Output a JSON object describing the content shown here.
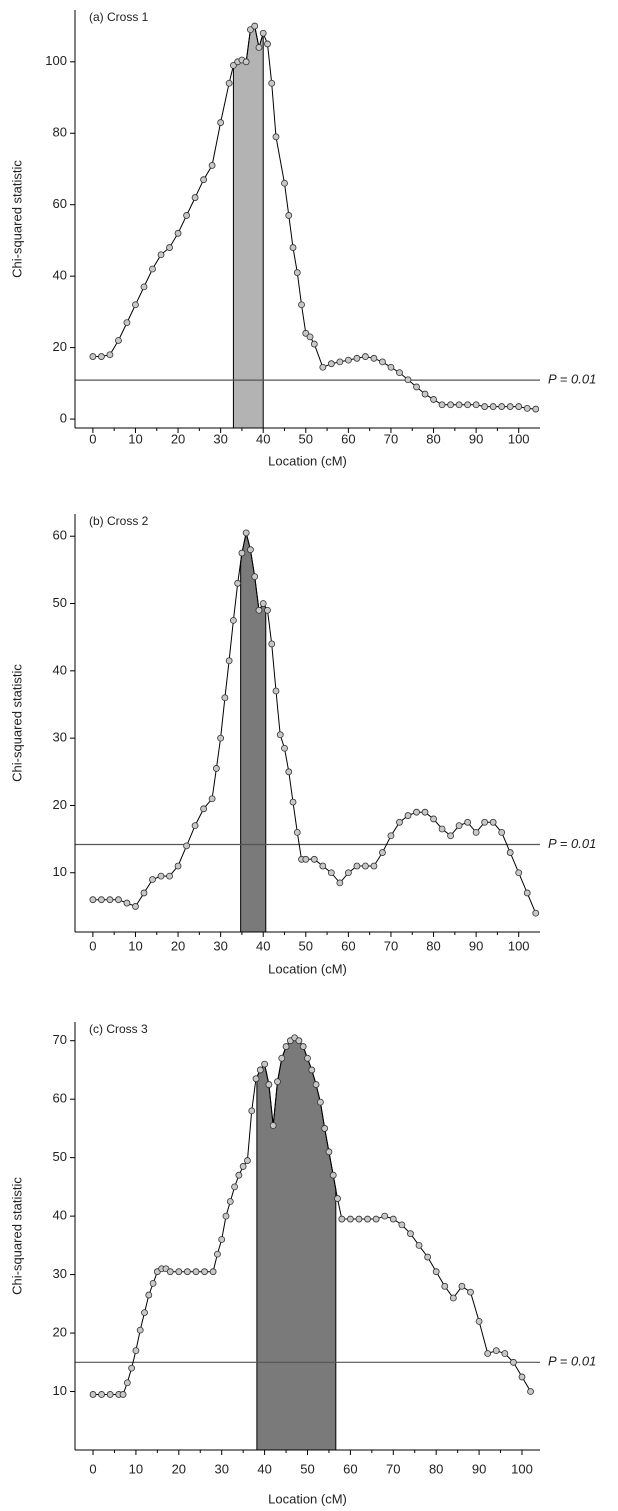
{
  "chart_data": [
    {
      "type": "line",
      "title": "(a) Cross 1",
      "x_label": "Location (cM)",
      "y_label": "Chi-squared statistic",
      "x": [
        0,
        2,
        4,
        6,
        8,
        10,
        12,
        14,
        16,
        18,
        20,
        22,
        24,
        26,
        28,
        30,
        32,
        33,
        34,
        35,
        36,
        37,
        38,
        39,
        40,
        41,
        42,
        43,
        45,
        46,
        47,
        48,
        49,
        50,
        51,
        52,
        54,
        56,
        58,
        60,
        62,
        64,
        66,
        68,
        70,
        72,
        74,
        76,
        78,
        80,
        82,
        84,
        86,
        88,
        90,
        92,
        94,
        96,
        98,
        100,
        102,
        104
      ],
      "values": [
        17.5,
        17.5,
        18,
        22,
        27,
        32,
        37,
        42,
        46,
        48,
        52,
        57,
        62,
        67,
        71,
        83,
        94,
        99,
        100,
        100.5,
        100,
        109,
        110,
        104,
        108,
        105,
        94,
        79,
        66,
        57,
        48,
        41,
        32,
        24,
        23,
        21,
        14.5,
        15.5,
        16,
        16.5,
        17,
        17.5,
        17,
        16,
        14.5,
        13,
        11,
        9,
        7,
        5.5,
        4,
        4,
        4,
        4,
        4,
        3.5,
        3.5,
        3.5,
        3.5,
        3.5,
        3,
        2.8
      ],
      "xlim": [
        -4.2,
        105
      ],
      "ylim": [
        -2.5,
        114.5
      ],
      "xticks": [
        0,
        10,
        20,
        30,
        40,
        50,
        60,
        70,
        80,
        90,
        100
      ],
      "yticks": [
        0,
        20,
        40,
        60,
        80,
        100
      ],
      "threshold": 10.9,
      "threshold_label": "P = 0.01",
      "interval": [
        33,
        40
      ],
      "interval_color": "#b3b3b3",
      "color": "#000000",
      "marker_fill": "#c8c8c8"
    },
    {
      "type": "line",
      "title": "(b) Cross 2",
      "x_label": "Location (cM)",
      "y_label": "Chi-squared statistic",
      "x": [
        0,
        2,
        4,
        6,
        8,
        10,
        12,
        14,
        16,
        18,
        20,
        22,
        24,
        26,
        28,
        29,
        30,
        31,
        32,
        33,
        34,
        35,
        36,
        37,
        38,
        39,
        40,
        41,
        42,
        43,
        44,
        45,
        46,
        47,
        48,
        49,
        50,
        52,
        54,
        56,
        58,
        60,
        62,
        64,
        66,
        68,
        70,
        72,
        74,
        76,
        78,
        80,
        82,
        84,
        86,
        88,
        90,
        92,
        94,
        96,
        98,
        100,
        102,
        104
      ],
      "values": [
        6,
        6,
        6,
        6,
        5.5,
        5,
        7,
        9,
        9.5,
        9.5,
        11,
        14,
        17,
        19.5,
        21,
        25.5,
        30,
        36,
        41.5,
        47.5,
        53,
        57.5,
        60.5,
        58,
        54,
        49,
        50,
        49,
        44,
        37,
        30.5,
        28.5,
        25,
        20.5,
        16,
        12,
        12,
        12,
        11,
        10,
        8.5,
        10,
        11,
        11,
        11,
        13,
        15.5,
        17.5,
        18.5,
        19,
        19,
        18,
        16.5,
        15.5,
        17,
        17.5,
        16,
        17.5,
        17.5,
        16,
        13,
        10,
        7,
        4
      ],
      "xlim": [
        -4.2,
        105
      ],
      "ylim": [
        1.2,
        63.3
      ],
      "xticks": [
        0,
        10,
        20,
        30,
        40,
        50,
        60,
        70,
        80,
        90,
        100
      ],
      "yticks": [
        10,
        20,
        30,
        40,
        50,
        60
      ],
      "threshold": 14.2,
      "threshold_label": "P = 0.01",
      "interval": [
        34.7,
        40.6
      ],
      "interval_color": "#7a7a7a",
      "color": "#000000",
      "marker_fill": "#c8c8c8"
    },
    {
      "type": "line",
      "title": "(c) Cross 3",
      "x_label": "Location (cM)",
      "y_label": "Chi-squared statistic",
      "x": [
        0,
        2,
        4,
        6,
        7,
        8,
        9,
        10,
        11,
        12,
        13,
        14,
        15,
        16,
        17,
        18,
        20,
        22,
        24,
        26,
        28,
        29,
        30,
        31,
        32,
        33,
        34,
        35,
        36,
        37,
        38,
        39,
        40,
        41,
        42,
        43,
        44,
        45,
        46,
        47,
        48,
        49,
        50,
        51,
        52,
        53,
        54,
        55,
        56,
        57,
        58,
        60,
        62,
        64,
        66,
        68,
        70,
        72,
        74,
        76,
        78,
        80,
        82,
        84,
        86,
        88,
        90,
        92,
        94,
        96,
        98,
        100,
        102
      ],
      "values": [
        9.5,
        9.5,
        9.5,
        9.5,
        9.5,
        11.5,
        14,
        17,
        20.5,
        23.5,
        26.5,
        28.5,
        30.5,
        31,
        31,
        30.5,
        30.5,
        30.5,
        30.5,
        30.5,
        30.5,
        33.5,
        36,
        40,
        42.5,
        45,
        47,
        48.5,
        49.5,
        58,
        63.5,
        65,
        66,
        62.5,
        55.5,
        63,
        67,
        69,
        70,
        70.5,
        70,
        69,
        67,
        65,
        62.5,
        59.5,
        55,
        51,
        47,
        43,
        39.5,
        39.5,
        39.5,
        39.5,
        39.5,
        40,
        39.5,
        38.5,
        37,
        35,
        33,
        30.5,
        28,
        26,
        28,
        27,
        22,
        16.5,
        17,
        16.5,
        15,
        12.5,
        10
      ],
      "xlim": [
        -4.2,
        104.2
      ],
      "ylim": [
        0,
        73.2
      ],
      "xticks": [
        0,
        10,
        20,
        30,
        40,
        50,
        60,
        70,
        80,
        90,
        100
      ],
      "yticks": [
        10,
        20,
        30,
        40,
        50,
        60,
        70
      ],
      "threshold": 15,
      "threshold_label": "P = 0.01",
      "interval": [
        38.2,
        56.6
      ],
      "interval_color": "#7a7a7a",
      "color": "#000000",
      "marker_fill": "#c8c8c8"
    }
  ]
}
